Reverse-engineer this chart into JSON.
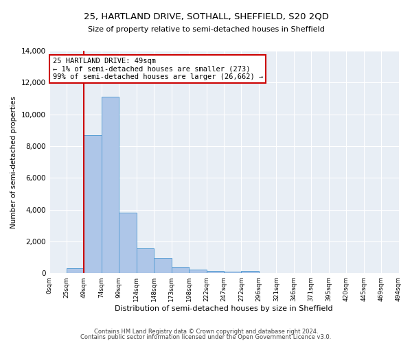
{
  "title": "25, HARTLAND DRIVE, SOTHALL, SHEFFIELD, S20 2QD",
  "subtitle": "Size of property relative to semi-detached houses in Sheffield",
  "xlabel": "Distribution of semi-detached houses by size in Sheffield",
  "ylabel": "Number of semi-detached properties",
  "annotation_line1": "25 HARTLAND DRIVE: 49sqm",
  "annotation_line2": "← 1% of semi-detached houses are smaller (273)",
  "annotation_line3": "99% of semi-detached houses are larger (26,662) →",
  "footer_line1": "Contains HM Land Registry data © Crown copyright and database right 2024.",
  "footer_line2": "Contains public sector information licensed under the Open Government Licence v3.0.",
  "bar_color": "#aec6e8",
  "bar_edge_color": "#5a9fd4",
  "annotation_box_color": "#ffffff",
  "annotation_box_edge": "#cc0000",
  "vline_color": "#cc0000",
  "background_color": "#e8eef5",
  "grid_color": "#ffffff",
  "ylim": [
    0,
    14000
  ],
  "yticks": [
    0,
    2000,
    4000,
    6000,
    8000,
    10000,
    12000,
    14000
  ],
  "bin_labels": [
    "0sqm",
    "25sqm",
    "49sqm",
    "74sqm",
    "99sqm",
    "124sqm",
    "148sqm",
    "173sqm",
    "198sqm",
    "222sqm",
    "247sqm",
    "272sqm",
    "296sqm",
    "321sqm",
    "346sqm",
    "371sqm",
    "395sqm",
    "420sqm",
    "445sqm",
    "469sqm",
    "494sqm"
  ],
  "bar_values": [
    0,
    300,
    8700,
    11100,
    3800,
    1550,
    950,
    380,
    220,
    160,
    110,
    150,
    0,
    0,
    0,
    0,
    0,
    0,
    0,
    0
  ],
  "property_bin_index": 2,
  "n_bins": 20,
  "vline_x": 2
}
